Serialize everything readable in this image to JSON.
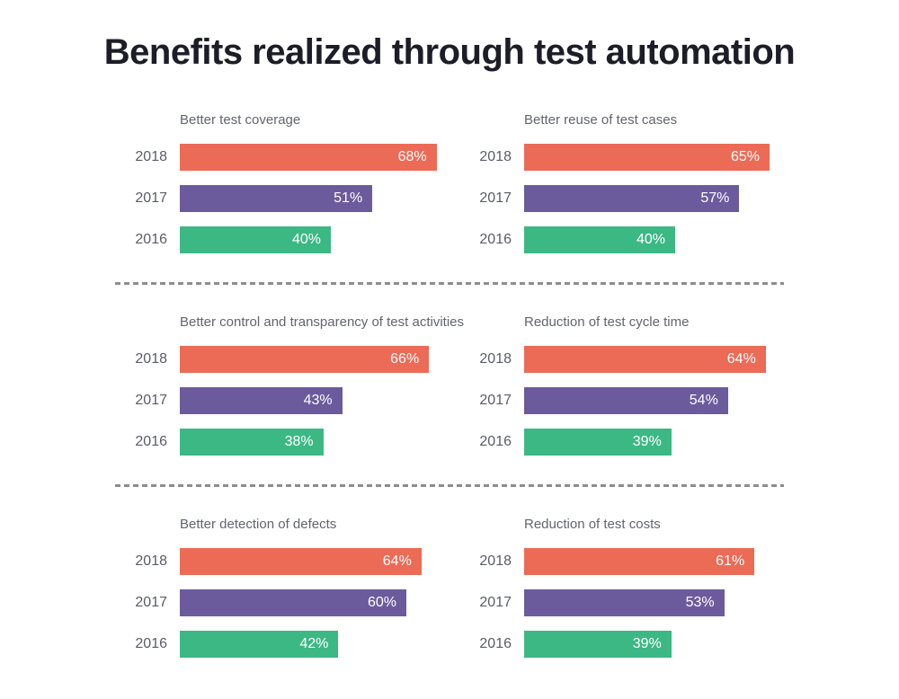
{
  "page_title": "Benefits realized through test automation",
  "colors": {
    "background": "#FFFFFF",
    "title_text": "#1D1D27",
    "chart_title_text": "#62656D",
    "year_label_text": "#5A5D66",
    "bar_value_text": "#FFFFFF",
    "separator": "#8D8D8D",
    "bars": {
      "2018": "#EC6B56",
      "2017": "#6B5B9D",
      "2016": "#3CB885"
    }
  },
  "chart_data": [
    {
      "type": "bar",
      "orientation": "horizontal",
      "title": "Better test coverage",
      "categories": [
        "2018",
        "2017",
        "2016"
      ],
      "values": [
        68,
        51,
        40
      ],
      "value_labels": [
        "68%",
        "51%",
        "40%"
      ],
      "xlim": [
        0,
        100
      ],
      "grid": false,
      "legend": "none"
    },
    {
      "type": "bar",
      "orientation": "horizontal",
      "title": "Better reuse of test cases",
      "categories": [
        "2018",
        "2017",
        "2016"
      ],
      "values": [
        65,
        57,
        40
      ],
      "value_labels": [
        "65%",
        "57%",
        "40%"
      ],
      "xlim": [
        0,
        100
      ],
      "grid": false,
      "legend": "none"
    },
    {
      "type": "bar",
      "orientation": "horizontal",
      "title": "Better control and transparency of test activities",
      "categories": [
        "2018",
        "2017",
        "2016"
      ],
      "values": [
        66,
        43,
        38
      ],
      "value_labels": [
        "66%",
        "43%",
        "38%"
      ],
      "xlim": [
        0,
        100
      ],
      "grid": false,
      "legend": "none"
    },
    {
      "type": "bar",
      "orientation": "horizontal",
      "title": "Reduction of test cycle time",
      "categories": [
        "2018",
        "2017",
        "2016"
      ],
      "values": [
        64,
        54,
        39
      ],
      "value_labels": [
        "64%",
        "54%",
        "39%"
      ],
      "xlim": [
        0,
        100
      ],
      "grid": false,
      "legend": "none"
    },
    {
      "type": "bar",
      "orientation": "horizontal",
      "title": "Better detection of defects",
      "categories": [
        "2018",
        "2017",
        "2016"
      ],
      "values": [
        64,
        60,
        42
      ],
      "value_labels": [
        "64%",
        "60%",
        "42%"
      ],
      "xlim": [
        0,
        100
      ],
      "grid": false,
      "legend": "none"
    },
    {
      "type": "bar",
      "orientation": "horizontal",
      "title": "Reduction of test costs",
      "categories": [
        "2018",
        "2017",
        "2016"
      ],
      "values": [
        61,
        53,
        39
      ],
      "value_labels": [
        "61%",
        "53%",
        "39%"
      ],
      "xlim": [
        0,
        100
      ],
      "grid": false,
      "legend": "none"
    }
  ]
}
